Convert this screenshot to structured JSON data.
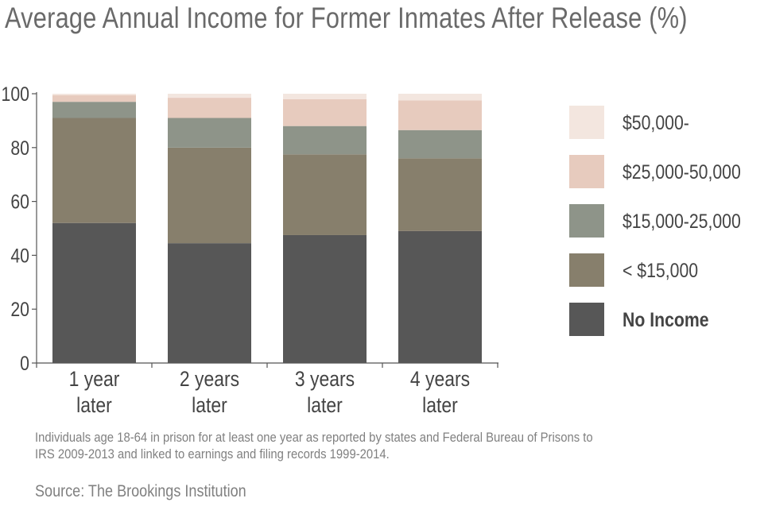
{
  "chart_data": {
    "type": "bar",
    "stacked": true,
    "title": "Average Annual Income for Former Inmates After Release (%)",
    "categories": [
      [
        "1 year",
        "later"
      ],
      [
        "2 years",
        "later"
      ],
      [
        "3 years",
        "later"
      ],
      [
        "4 years",
        "later"
      ]
    ],
    "ylim": [
      0,
      100
    ],
    "yticks": [
      0,
      20,
      40,
      60,
      80,
      100
    ],
    "grid": false,
    "legend_position": "right",
    "series": [
      {
        "name": "No Income",
        "color": "#575757",
        "values": [
          52,
          44.5,
          47.5,
          49
        ]
      },
      {
        "name": "< $15,000",
        "color": "#877f6c",
        "values": [
          39,
          35.5,
          30,
          27
        ]
      },
      {
        "name": "$15,000-25,000",
        "color": "#8e9489",
        "values": [
          6,
          11,
          10.5,
          10.5
        ]
      },
      {
        "name": "$25,000-50,000",
        "color": "#e7cbbe",
        "values": [
          2.5,
          7.5,
          10,
          11
        ]
      },
      {
        "name": "$50,000-",
        "color": "#f3e6df",
        "values": [
          0.5,
          1.5,
          2,
          2.5
        ]
      }
    ]
  },
  "note": "Individuals age 18-64 in prison for at least one year as reported by states and Federal Bureau of Prisons to IRS 2009-2013 and linked to earnings and filing records 1999-2014.",
  "source": "Source: The Brookings Institution"
}
